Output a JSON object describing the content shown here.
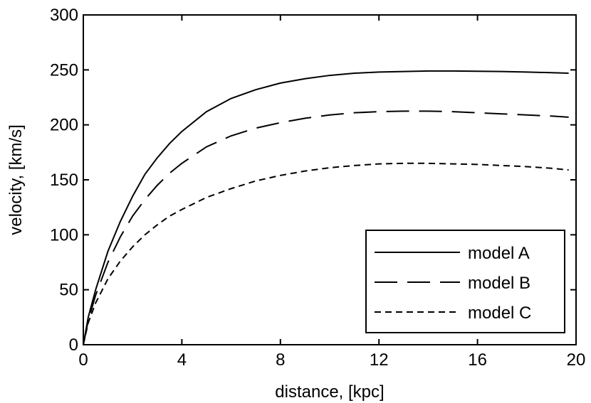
{
  "chart_data": {
    "type": "line",
    "title": "",
    "xlabel": "distance, [kpc]",
    "ylabel": "velocity, [km/s]",
    "xlim": [
      0,
      20
    ],
    "ylim": [
      0,
      300
    ],
    "xticks": [
      0,
      4,
      8,
      12,
      16,
      20
    ],
    "yticks": [
      0,
      50,
      100,
      150,
      200,
      250,
      300
    ],
    "grid": false,
    "legend_position": "bottom-right",
    "series": [
      {
        "name": "model A",
        "style": "solid",
        "x": [
          0,
          0.2,
          0.5,
          1,
          1.5,
          2,
          2.5,
          3,
          3.5,
          4,
          5,
          6,
          7,
          8,
          9,
          10,
          11,
          12,
          13,
          14,
          15,
          16,
          17,
          18,
          19,
          19.7
        ],
        "y": [
          0,
          25,
          50,
          85,
          112,
          135,
          155,
          170,
          183,
          194,
          212,
          224,
          232,
          238,
          242,
          245,
          247,
          248,
          248.5,
          249,
          249,
          248.8,
          248.5,
          248,
          247.5,
          247
        ]
      },
      {
        "name": "model B",
        "style": "long-dash",
        "x": [
          0,
          0.2,
          0.5,
          1,
          1.5,
          2,
          2.5,
          3,
          3.5,
          4,
          5,
          6,
          7,
          8,
          9,
          10,
          11,
          12,
          13,
          14,
          15,
          16,
          17,
          18,
          19,
          19.7
        ],
        "y": [
          0,
          22,
          45,
          75,
          98,
          117,
          132,
          145,
          156,
          165,
          180,
          190,
          197,
          202,
          206,
          209,
          211,
          212,
          212.5,
          212.5,
          212,
          211,
          210,
          209,
          208,
          207
        ]
      },
      {
        "name": "model C",
        "style": "short-dash",
        "x": [
          0,
          0.2,
          0.5,
          1,
          1.5,
          2,
          2.5,
          3,
          3.5,
          4,
          5,
          6,
          7,
          8,
          9,
          10,
          11,
          12,
          13,
          14,
          15,
          16,
          17,
          18,
          19,
          19.7
        ],
        "y": [
          0,
          20,
          38,
          60,
          76,
          89,
          100,
          109,
          117,
          123,
          134,
          142,
          149,
          154,
          158,
          161,
          163,
          164.5,
          165,
          165,
          164.5,
          164,
          163,
          162,
          160.5,
          159
        ]
      }
    ]
  }
}
